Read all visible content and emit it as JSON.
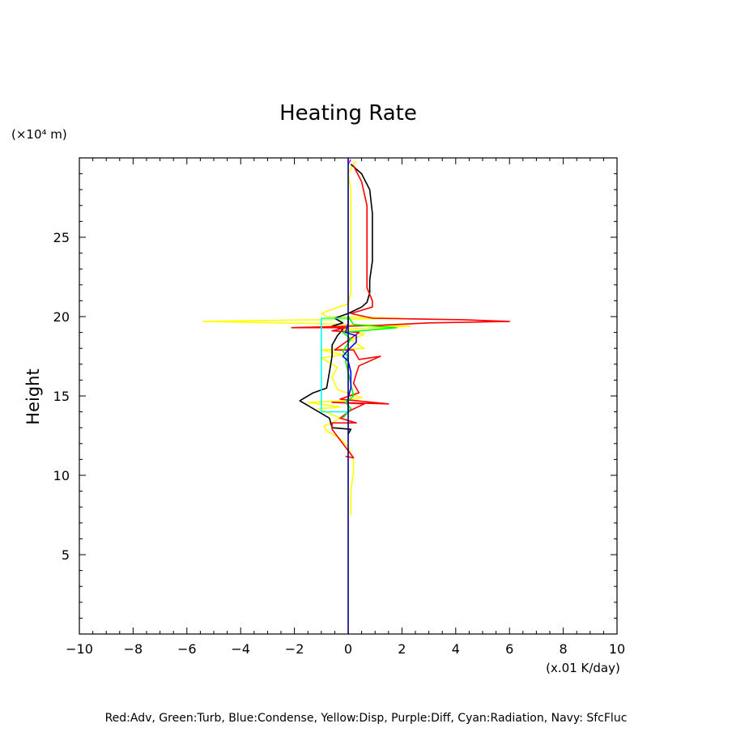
{
  "chart_data": {
    "type": "line",
    "title": "Heating Rate",
    "ylabel": "Height",
    "yunit": "(×10⁴ m)",
    "xunit": "(x.01 K/day)",
    "xlim": [
      -10,
      10
    ],
    "ylim": [
      0,
      30
    ],
    "xticks": [
      -10,
      -8,
      -6,
      -4,
      -2,
      0,
      2,
      4,
      6,
      8,
      10
    ],
    "xtick_labels": [
      "−10",
      "−8",
      "−6",
      "−4",
      "−2",
      "0",
      "2",
      "4",
      "6",
      "8",
      "10"
    ],
    "yticks": [
      5,
      10,
      15,
      20,
      25
    ],
    "ytick_labels": [
      "5",
      "10",
      "15",
      "20",
      "25"
    ],
    "grid": false,
    "footer": "Red:Adv, Green:Turb, Blue:Condense, Yellow:Disp, Purple:Diff, Cyan:Radiation, Navy: SfcFluc",
    "series": [
      {
        "key": "yellow",
        "color": "#ffff00",
        "points": [
          [
            0.1,
            7.5
          ],
          [
            0.1,
            9
          ],
          [
            0.2,
            10.3
          ],
          [
            0.2,
            10.9
          ],
          [
            0.0,
            11.8
          ],
          [
            -0.3,
            12.3
          ],
          [
            -0.8,
            12.8
          ],
          [
            -0.9,
            13.1
          ],
          [
            -0.6,
            13.3
          ],
          [
            -0.3,
            13.6
          ],
          [
            -0.7,
            13.9
          ],
          [
            -1.1,
            14.2
          ],
          [
            -0.3,
            14.3
          ],
          [
            -1.5,
            14.6
          ],
          [
            -0.2,
            14.7
          ],
          [
            0.5,
            14.9
          ],
          [
            -0.4,
            15.4
          ],
          [
            -0.6,
            16.2
          ],
          [
            -0.4,
            16.8
          ],
          [
            -1.0,
            17.4
          ],
          [
            -0.2,
            17.6
          ],
          [
            -1.0,
            17.9
          ],
          [
            0.6,
            18.0
          ],
          [
            0.1,
            18.5
          ],
          [
            0.6,
            18.9
          ],
          [
            -0.2,
            19.2
          ],
          [
            2.3,
            19.4
          ],
          [
            -1.0,
            19.55
          ],
          [
            -5.4,
            19.7
          ],
          [
            -1.0,
            19.8
          ],
          [
            2.0,
            19.9
          ],
          [
            -0.8,
            20.0
          ],
          [
            -1.0,
            20.2
          ],
          [
            -0.7,
            20.4
          ],
          [
            0.0,
            20.8
          ],
          [
            0.1,
            21.5
          ],
          [
            0.1,
            22.5
          ],
          [
            0.1,
            24
          ],
          [
            0.1,
            26
          ],
          [
            0.1,
            28
          ],
          [
            0.0,
            29
          ],
          [
            0.2,
            29.6
          ],
          [
            0.3,
            29.8
          ]
        ]
      },
      {
        "key": "black",
        "color": "#000000",
        "points": [
          [
            0.0,
            12.6
          ],
          [
            0.1,
            12.9
          ],
          [
            -0.6,
            13.0
          ],
          [
            -0.7,
            13.6
          ],
          [
            -1.1,
            14.0
          ],
          [
            -1.8,
            14.7
          ],
          [
            -1.3,
            15.2
          ],
          [
            -0.8,
            15.5
          ],
          [
            -0.7,
            16.5
          ],
          [
            -0.6,
            17.5
          ],
          [
            -0.6,
            18.2
          ],
          [
            -0.4,
            18.8
          ],
          [
            -0.2,
            19.2
          ],
          [
            -0.6,
            19.4
          ],
          [
            -0.2,
            19.6
          ],
          [
            -0.5,
            19.9
          ],
          [
            0.0,
            20.2
          ],
          [
            0.5,
            20.6
          ],
          [
            0.7,
            20.9
          ],
          [
            0.8,
            21.5
          ],
          [
            0.8,
            22.3
          ],
          [
            0.9,
            23.5
          ],
          [
            0.9,
            25.0
          ],
          [
            0.9,
            26.5
          ],
          [
            0.8,
            28.0
          ],
          [
            0.5,
            29.0
          ],
          [
            0.1,
            29.6
          ]
        ]
      },
      {
        "key": "red",
        "color": "#ff0000",
        "points": [
          [
            -0.1,
            11.2
          ],
          [
            0.2,
            11.1
          ],
          [
            -0.6,
            12.9
          ],
          [
            -0.6,
            13.3
          ],
          [
            0.3,
            13.3
          ],
          [
            -0.3,
            13.6
          ],
          [
            0.1,
            14.1
          ],
          [
            0.6,
            14.5
          ],
          [
            -0.6,
            14.6
          ],
          [
            1.5,
            14.5
          ],
          [
            -0.3,
            14.8
          ],
          [
            0.4,
            15.2
          ],
          [
            0.2,
            15.8
          ],
          [
            0.3,
            16.4
          ],
          [
            0.4,
            16.9
          ],
          [
            1.2,
            17.5
          ],
          [
            0.4,
            17.3
          ],
          [
            0.2,
            17.9
          ],
          [
            -0.5,
            17.9
          ],
          [
            0.0,
            18.5
          ],
          [
            0.4,
            19.0
          ],
          [
            -0.6,
            19.1
          ],
          [
            -0.1,
            19.3
          ],
          [
            -2.1,
            19.3
          ],
          [
            1.1,
            19.45
          ],
          [
            3.0,
            19.6
          ],
          [
            6.0,
            19.7
          ],
          [
            4.3,
            19.8
          ],
          [
            0.9,
            19.9
          ],
          [
            0.1,
            20.2
          ],
          [
            0.9,
            20.6
          ],
          [
            0.9,
            21.0
          ],
          [
            0.7,
            21.8
          ],
          [
            0.7,
            23.5
          ],
          [
            0.7,
            25.5
          ],
          [
            0.7,
            27
          ],
          [
            0.5,
            28.5
          ],
          [
            0.2,
            29.5
          ]
        ]
      },
      {
        "key": "green",
        "color": "#00ff00",
        "points": [
          [
            -0.2,
            13.6
          ],
          [
            0.1,
            14.2
          ],
          [
            -0.1,
            14.6
          ],
          [
            0.2,
            15.0
          ],
          [
            0.0,
            16.5
          ],
          [
            -0.1,
            17.2
          ],
          [
            0.0,
            17.5
          ],
          [
            -0.2,
            17.8
          ],
          [
            0.1,
            18.6
          ],
          [
            -0.2,
            19.0
          ],
          [
            1.8,
            19.3
          ],
          [
            0.2,
            19.5
          ],
          [
            0.0,
            20.0
          ]
        ]
      },
      {
        "key": "blue",
        "color": "#0000ff",
        "points": [
          [
            0.0,
            14.0
          ],
          [
            0.0,
            14.9
          ],
          [
            0.1,
            15.5
          ],
          [
            0.1,
            16.5
          ],
          [
            0.0,
            17.2
          ],
          [
            -0.2,
            17.5
          ],
          [
            0.0,
            17.9
          ],
          [
            0.3,
            18.4
          ],
          [
            0.3,
            18.8
          ],
          [
            -0.1,
            19.0
          ],
          [
            0.0,
            19.6
          ],
          [
            0.0,
            20.0
          ]
        ]
      },
      {
        "key": "cyan",
        "color": "#00ffff",
        "points": [
          [
            0.0,
            14.0
          ],
          [
            -1.0,
            14.0
          ],
          [
            -1.0,
            19.9
          ],
          [
            0.0,
            19.9
          ]
        ]
      },
      {
        "key": "purple",
        "color": "#ff00ff",
        "points": [
          [
            0.0,
            29.6
          ],
          [
            0.1,
            29.9
          ]
        ]
      },
      {
        "key": "navy",
        "color": "#000080",
        "points": [
          [
            0.0,
            0
          ],
          [
            0.0,
            30
          ]
        ]
      }
    ]
  }
}
